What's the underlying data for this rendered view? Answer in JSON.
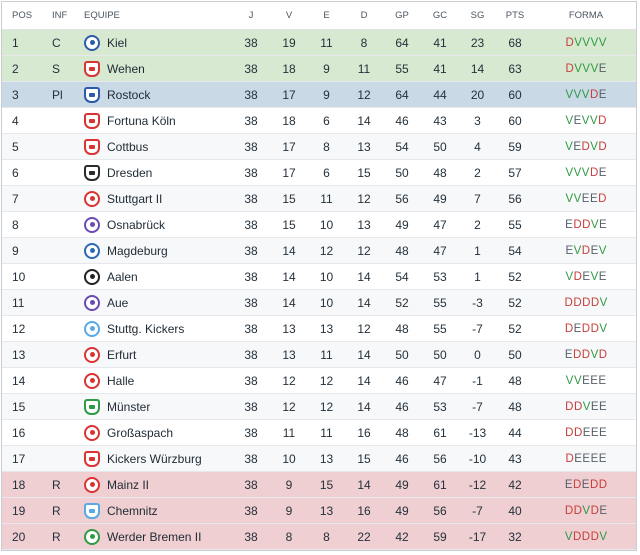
{
  "columns": {
    "pos": "POS",
    "inf": "INF",
    "team": "EQUIPE",
    "j": "J",
    "v": "V",
    "e": "E",
    "d": "D",
    "gp": "GP",
    "gc": "GC",
    "sg": "SG",
    "pts": "PTS",
    "form": "FORMA"
  },
  "rows": [
    {
      "pos": "1",
      "inf": "C",
      "team": "Kiel",
      "j": "38",
      "v": "19",
      "e": "11",
      "d": "8",
      "gp": "64",
      "gc": "41",
      "sg": "23",
      "pts": "68",
      "form": "DVVVV",
      "zone": "promo",
      "badge_color": "#2b5ca8",
      "badge_shape": "round",
      "icon": "kiel-crest-icon"
    },
    {
      "pos": "2",
      "inf": "S",
      "team": "Wehen",
      "j": "38",
      "v": "18",
      "e": "9",
      "d": "11",
      "gp": "55",
      "gc": "41",
      "sg": "14",
      "pts": "63",
      "form": "DVVVE",
      "zone": "promo",
      "badge_color": "#d93333",
      "badge_shape": "shield",
      "icon": "wehen-crest-icon"
    },
    {
      "pos": "3",
      "inf": "Pl",
      "team": "Rostock",
      "j": "38",
      "v": "17",
      "e": "9",
      "d": "12",
      "gp": "64",
      "gc": "44",
      "sg": "20",
      "pts": "60",
      "form": "VVVDE",
      "zone": "playoff",
      "badge_color": "#2d5aa8",
      "badge_shape": "shield",
      "icon": "rostock-crest-icon"
    },
    {
      "pos": "4",
      "inf": "",
      "team": "Fortuna Köln",
      "j": "38",
      "v": "18",
      "e": "6",
      "d": "14",
      "gp": "46",
      "gc": "43",
      "sg": "3",
      "pts": "60",
      "form": "VEVVD",
      "zone": "",
      "badge_color": "#d93333",
      "badge_shape": "shield",
      "icon": "fortuna-koln-crest-icon"
    },
    {
      "pos": "5",
      "inf": "",
      "team": "Cottbus",
      "j": "38",
      "v": "17",
      "e": "8",
      "d": "13",
      "gp": "54",
      "gc": "50",
      "sg": "4",
      "pts": "59",
      "form": "VEDVD",
      "zone": "",
      "badge_color": "#d93333",
      "badge_shape": "shield",
      "icon": "cottbus-crest-icon"
    },
    {
      "pos": "6",
      "inf": "",
      "team": "Dresden",
      "j": "38",
      "v": "17",
      "e": "6",
      "d": "15",
      "gp": "50",
      "gc": "48",
      "sg": "2",
      "pts": "57",
      "form": "VVVDE",
      "zone": "",
      "badge_color": "#2b2b2b",
      "badge_shape": "shield",
      "icon": "dresden-crest-icon"
    },
    {
      "pos": "7",
      "inf": "",
      "team": "Stuttgart II",
      "j": "38",
      "v": "15",
      "e": "11",
      "d": "12",
      "gp": "56",
      "gc": "49",
      "sg": "7",
      "pts": "56",
      "form": "VVEED",
      "zone": "",
      "badge_color": "#d93333",
      "badge_shape": "round",
      "icon": "stuttgart-ii-crest-icon"
    },
    {
      "pos": "8",
      "inf": "",
      "team": "Osnabrück",
      "j": "38",
      "v": "15",
      "e": "10",
      "d": "13",
      "gp": "49",
      "gc": "47",
      "sg": "2",
      "pts": "55",
      "form": "EDDVE",
      "zone": "",
      "badge_color": "#6b4bb3",
      "badge_shape": "round",
      "icon": "osnabruck-crest-icon"
    },
    {
      "pos": "9",
      "inf": "",
      "team": "Magdeburg",
      "j": "38",
      "v": "14",
      "e": "12",
      "d": "12",
      "gp": "48",
      "gc": "47",
      "sg": "1",
      "pts": "54",
      "form": "EVDEV",
      "zone": "",
      "badge_color": "#2c6ab3",
      "badge_shape": "round",
      "icon": "magdeburg-crest-icon"
    },
    {
      "pos": "10",
      "inf": "",
      "team": "Aalen",
      "j": "38",
      "v": "14",
      "e": "10",
      "d": "14",
      "gp": "54",
      "gc": "53",
      "sg": "1",
      "pts": "52",
      "form": "VDEVE",
      "zone": "",
      "badge_color": "#222222",
      "badge_shape": "round",
      "icon": "aalen-crest-icon"
    },
    {
      "pos": "11",
      "inf": "",
      "team": "Aue",
      "j": "38",
      "v": "14",
      "e": "10",
      "d": "14",
      "gp": "52",
      "gc": "55",
      "sg": "-3",
      "pts": "52",
      "form": "DDDDV",
      "zone": "",
      "badge_color": "#6b4bb3",
      "badge_shape": "round",
      "icon": "aue-crest-icon"
    },
    {
      "pos": "12",
      "inf": "",
      "team": "Stuttg. Kickers",
      "j": "38",
      "v": "13",
      "e": "13",
      "d": "12",
      "gp": "48",
      "gc": "55",
      "sg": "-7",
      "pts": "52",
      "form": "DEDDV",
      "zone": "",
      "badge_color": "#5aa9e6",
      "badge_shape": "round",
      "icon": "stuttgarter-kickers-crest-icon"
    },
    {
      "pos": "13",
      "inf": "",
      "team": "Erfurt",
      "j": "38",
      "v": "13",
      "e": "11",
      "d": "14",
      "gp": "50",
      "gc": "50",
      "sg": "0",
      "pts": "50",
      "form": "EDDVD",
      "zone": "",
      "badge_color": "#d93333",
      "badge_shape": "round",
      "icon": "erfurt-crest-icon"
    },
    {
      "pos": "14",
      "inf": "",
      "team": "Halle",
      "j": "38",
      "v": "12",
      "e": "12",
      "d": "14",
      "gp": "46",
      "gc": "47",
      "sg": "-1",
      "pts": "48",
      "form": "VVEEE",
      "zone": "",
      "badge_color": "#d93333",
      "badge_shape": "round",
      "icon": "halle-crest-icon"
    },
    {
      "pos": "15",
      "inf": "",
      "team": "Münster",
      "j": "38",
      "v": "12",
      "e": "12",
      "d": "14",
      "gp": "46",
      "gc": "53",
      "sg": "-7",
      "pts": "48",
      "form": "DDVEE",
      "zone": "",
      "badge_color": "#2f9a44",
      "badge_shape": "shield",
      "icon": "munster-crest-icon"
    },
    {
      "pos": "16",
      "inf": "",
      "team": "Großaspach",
      "j": "38",
      "v": "11",
      "e": "11",
      "d": "16",
      "gp": "48",
      "gc": "61",
      "sg": "-13",
      "pts": "44",
      "form": "DDEEE",
      "zone": "",
      "badge_color": "#d93333",
      "badge_shape": "round",
      "icon": "grossaspach-crest-icon"
    },
    {
      "pos": "17",
      "inf": "",
      "team": "Kickers Würzburg",
      "j": "38",
      "v": "10",
      "e": "13",
      "d": "15",
      "gp": "46",
      "gc": "56",
      "sg": "-10",
      "pts": "43",
      "form": "DEEEE",
      "zone": "",
      "badge_color": "#d93333",
      "badge_shape": "shield",
      "icon": "kickers-wurzburg-crest-icon"
    },
    {
      "pos": "18",
      "inf": "R",
      "team": "Mainz II",
      "j": "38",
      "v": "9",
      "e": "15",
      "d": "14",
      "gp": "49",
      "gc": "61",
      "sg": "-12",
      "pts": "42",
      "form": "EDEDD",
      "zone": "releg",
      "badge_color": "#d93333",
      "badge_shape": "round",
      "icon": "mainz-ii-crest-icon"
    },
    {
      "pos": "19",
      "inf": "R",
      "team": "Chemnitz",
      "j": "38",
      "v": "9",
      "e": "13",
      "d": "16",
      "gp": "49",
      "gc": "56",
      "sg": "-7",
      "pts": "40",
      "form": "DDVDE",
      "zone": "releg",
      "badge_color": "#5aa9e6",
      "badge_shape": "shield",
      "icon": "chemnitz-crest-icon"
    },
    {
      "pos": "20",
      "inf": "R",
      "team": "Werder Bremen II",
      "j": "38",
      "v": "8",
      "e": "8",
      "d": "22",
      "gp": "42",
      "gc": "59",
      "sg": "-17",
      "pts": "32",
      "form": "VDDDV",
      "zone": "releg",
      "badge_color": "#2f9a44",
      "badge_shape": "round",
      "icon": "werder-bremen-ii-crest-icon"
    }
  ]
}
